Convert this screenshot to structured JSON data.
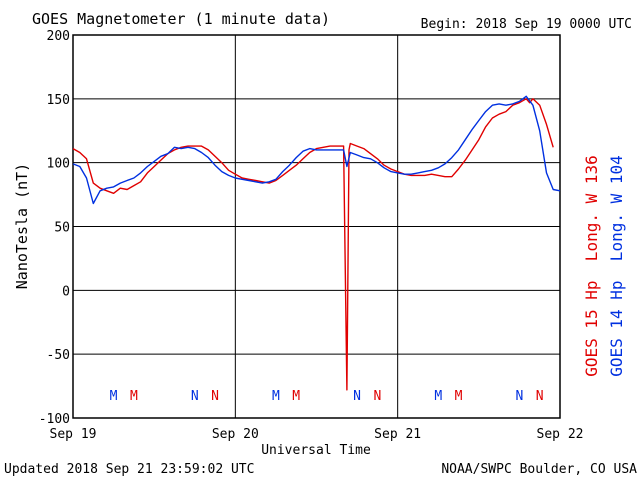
{
  "title": "GOES Magnetometer (1 minute data)",
  "begin": "Begin:  2018 Sep 19 0000 UTC",
  "updated": "Updated 2018 Sep 21 23:59:02 UTC",
  "credit": "NOAA/SWPC Boulder, CO USA",
  "chart_data": {
    "type": "line",
    "xlabel": "Universal Time",
    "ylabel": "NanoTesla (nT)",
    "xlim": [
      0,
      72
    ],
    "ylim": [
      -100,
      200
    ],
    "yticks": [
      -100,
      -50,
      0,
      50,
      100,
      150,
      200
    ],
    "ytick_labels": [
      "-100",
      "-50",
      "0",
      "50",
      "100",
      "150",
      "200"
    ],
    "xticks": [
      {
        "x": 0,
        "label": "Sep 19"
      },
      {
        "x": 24,
        "label": "Sep 20"
      },
      {
        "x": 48,
        "label": "Sep 21"
      },
      {
        "x": 72,
        "label": "Sep 22"
      }
    ],
    "grid": true,
    "series": [
      {
        "name": "GOES 15 Hp  Long. W 136",
        "color": "#e00000",
        "points": [
          [
            0,
            111
          ],
          [
            1,
            108
          ],
          [
            2,
            103
          ],
          [
            3,
            84
          ],
          [
            4,
            80
          ],
          [
            5,
            78
          ],
          [
            6,
            76
          ],
          [
            7,
            80
          ],
          [
            8,
            79
          ],
          [
            9,
            82
          ],
          [
            10,
            85
          ],
          [
            11,
            92
          ],
          [
            12,
            97
          ],
          [
            13,
            102
          ],
          [
            14,
            107
          ],
          [
            15,
            110
          ],
          [
            16,
            112
          ],
          [
            17,
            113
          ],
          [
            18,
            113
          ],
          [
            19,
            113
          ],
          [
            20,
            110
          ],
          [
            21,
            105
          ],
          [
            22,
            100
          ],
          [
            23,
            94
          ],
          [
            24,
            91
          ],
          [
            25,
            88
          ],
          [
            26,
            87
          ],
          [
            27,
            86
          ],
          [
            28,
            85
          ],
          [
            29,
            84
          ],
          [
            30,
            86
          ],
          [
            31,
            90
          ],
          [
            32,
            94
          ],
          [
            33,
            98
          ],
          [
            34,
            103
          ],
          [
            35,
            108
          ],
          [
            36,
            111
          ],
          [
            37,
            112
          ],
          [
            38,
            113
          ],
          [
            39,
            113
          ],
          [
            40,
            113
          ],
          [
            40.5,
            -78
          ],
          [
            40.8,
            110
          ],
          [
            41,
            115
          ],
          [
            42,
            113
          ],
          [
            43,
            111
          ],
          [
            44,
            107
          ],
          [
            45,
            103
          ],
          [
            46,
            98
          ],
          [
            47,
            95
          ],
          [
            48,
            93
          ],
          [
            49,
            91
          ],
          [
            50,
            90
          ],
          [
            51,
            90
          ],
          [
            52,
            90
          ],
          [
            53,
            91
          ],
          [
            54,
            90
          ],
          [
            55,
            89
          ],
          [
            56,
            89
          ],
          [
            57,
            95
          ],
          [
            58,
            102
          ],
          [
            59,
            110
          ],
          [
            60,
            118
          ],
          [
            61,
            128
          ],
          [
            62,
            135
          ],
          [
            63,
            138
          ],
          [
            64,
            140
          ],
          [
            65,
            145
          ],
          [
            66,
            147
          ],
          [
            67,
            150
          ],
          [
            67.5,
            147
          ],
          [
            68,
            150
          ],
          [
            69,
            145
          ],
          [
            70,
            130
          ],
          [
            71,
            112
          ]
        ]
      },
      {
        "name": "GOES 14 Hp  Long. W 104",
        "color": "#0030e0",
        "points": [
          [
            0,
            99
          ],
          [
            1,
            97
          ],
          [
            2,
            88
          ],
          [
            3,
            68
          ],
          [
            4,
            78
          ],
          [
            5,
            80
          ],
          [
            6,
            81
          ],
          [
            7,
            84
          ],
          [
            8,
            86
          ],
          [
            9,
            88
          ],
          [
            10,
            92
          ],
          [
            11,
            97
          ],
          [
            12,
            101
          ],
          [
            13,
            105
          ],
          [
            14,
            107
          ],
          [
            15,
            112
          ],
          [
            16,
            111
          ],
          [
            17,
            112
          ],
          [
            18,
            111
          ],
          [
            19,
            108
          ],
          [
            20,
            104
          ],
          [
            21,
            98
          ],
          [
            22,
            93
          ],
          [
            23,
            90
          ],
          [
            24,
            88
          ],
          [
            25,
            87
          ],
          [
            26,
            86
          ],
          [
            27,
            85
          ],
          [
            28,
            84
          ],
          [
            29,
            85
          ],
          [
            30,
            87
          ],
          [
            31,
            93
          ],
          [
            32,
            98
          ],
          [
            33,
            104
          ],
          [
            34,
            109
          ],
          [
            35,
            111
          ],
          [
            36,
            110
          ],
          [
            37,
            110
          ],
          [
            38,
            110
          ],
          [
            39,
            110
          ],
          [
            40,
            110
          ],
          [
            40.5,
            97
          ],
          [
            41,
            108
          ],
          [
            42,
            106
          ],
          [
            43,
            104
          ],
          [
            44,
            103
          ],
          [
            45,
            100
          ],
          [
            46,
            96
          ],
          [
            47,
            93
          ],
          [
            48,
            92
          ],
          [
            49,
            91
          ],
          [
            50,
            91
          ],
          [
            51,
            92
          ],
          [
            52,
            93
          ],
          [
            53,
            94
          ],
          [
            54,
            96
          ],
          [
            55,
            99
          ],
          [
            56,
            104
          ],
          [
            57,
            110
          ],
          [
            58,
            118
          ],
          [
            59,
            126
          ],
          [
            60,
            133
          ],
          [
            61,
            140
          ],
          [
            62,
            145
          ],
          [
            63,
            146
          ],
          [
            64,
            145
          ],
          [
            65,
            146
          ],
          [
            66,
            148
          ],
          [
            67,
            152
          ],
          [
            68,
            145
          ],
          [
            69,
            125
          ],
          [
            70,
            92
          ],
          [
            71,
            79
          ],
          [
            72,
            78
          ]
        ]
      }
    ],
    "markers": [
      {
        "x": 6,
        "label": "M",
        "color": "#0030e0"
      },
      {
        "x": 9,
        "label": "M",
        "color": "#e00000"
      },
      {
        "x": 18,
        "label": "N",
        "color": "#0030e0"
      },
      {
        "x": 21,
        "label": "N",
        "color": "#e00000"
      },
      {
        "x": 30,
        "label": "M",
        "color": "#0030e0"
      },
      {
        "x": 33,
        "label": "M",
        "color": "#e00000"
      },
      {
        "x": 42,
        "label": "N",
        "color": "#0030e0"
      },
      {
        "x": 45,
        "label": "N",
        "color": "#e00000"
      },
      {
        "x": 54,
        "label": "M",
        "color": "#0030e0"
      },
      {
        "x": 57,
        "label": "M",
        "color": "#e00000"
      },
      {
        "x": 66,
        "label": "N",
        "color": "#0030e0"
      },
      {
        "x": 69,
        "label": "N",
        "color": "#e00000"
      }
    ],
    "marker_y": -82,
    "legend_placement": "right"
  }
}
